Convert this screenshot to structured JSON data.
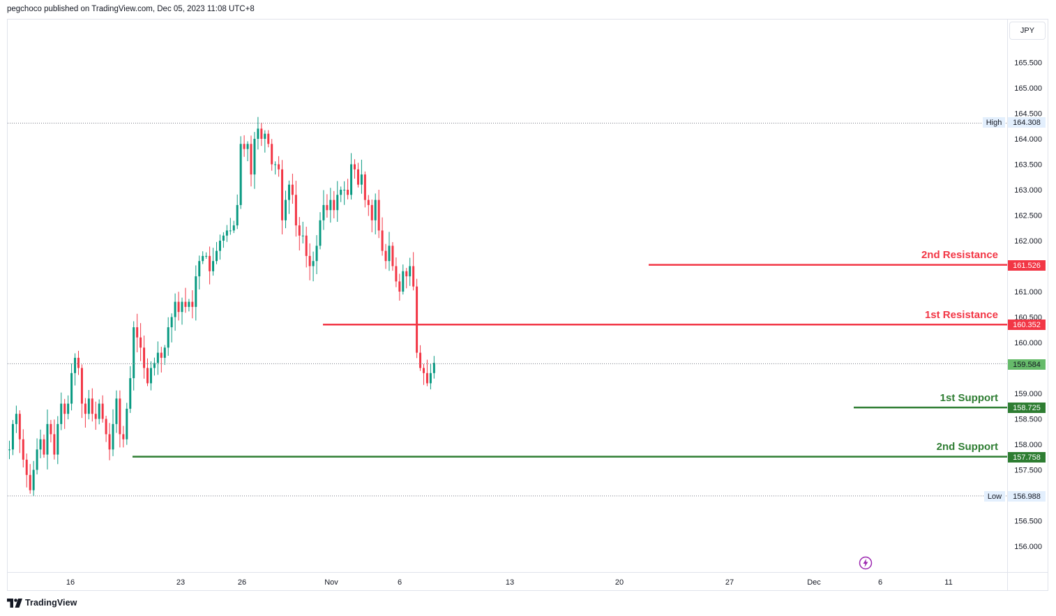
{
  "header": {
    "publisher_text": "pegchoco published on TradingView.com, Dec 05, 2023 11:08 UTC+8"
  },
  "currency_button": "JPY",
  "footer": {
    "brand": "TradingView"
  },
  "colors": {
    "up": "#26a69a",
    "down": "#ef5350",
    "up_body": "#2e9e4e",
    "resistance": "#f23645",
    "support": "#2e7d32",
    "current_price_bg": "#66bb6a",
    "axis_text": "#131722",
    "grid": "#e0e3eb"
  },
  "levels": {
    "res2": {
      "label": "2nd Resistance",
      "price": "161.526"
    },
    "res1": {
      "label": "1st Resistance",
      "price": "160.352"
    },
    "sup1": {
      "label": "1st Support",
      "price": "158.725"
    },
    "sup2": {
      "label": "2nd Support",
      "price": "157.758"
    }
  },
  "markers": {
    "high": {
      "label": "High",
      "price": "164.308"
    },
    "low": {
      "label": "Low",
      "price": "156.988"
    },
    "current": {
      "price": "159.584"
    }
  },
  "chart_data": {
    "type": "candlestick",
    "symbol_currency": "JPY",
    "y_axis": {
      "ticks": [
        "165.500",
        "165.000",
        "164.500",
        "164.000",
        "163.500",
        "163.000",
        "162.500",
        "162.000",
        "161.000",
        "160.500",
        "160.000",
        "159.000",
        "158.500",
        "158.000",
        "157.500",
        "156.500",
        "156.000"
      ],
      "ylim": [
        155.7,
        166.0
      ]
    },
    "x_axis": {
      "ticks": [
        "16",
        "23",
        "26",
        "Nov",
        "6",
        "13",
        "20",
        "27",
        "Dec",
        "6",
        "11"
      ]
    },
    "grid": false,
    "high": 164.308,
    "low": 156.988,
    "last_price": 159.584,
    "path": [
      {
        "d": "Oct 16",
        "p": 157.9
      },
      {
        "d": "Oct 16",
        "p": 158.4
      },
      {
        "d": "Oct 16",
        "p": 158.6
      },
      {
        "d": "Oct 17",
        "p": 158.1
      },
      {
        "d": "Oct 17",
        "p": 157.7
      },
      {
        "d": "Oct 18",
        "p": 157.4
      },
      {
        "d": "Oct 18",
        "p": 157.1
      },
      {
        "d": "Oct 19",
        "p": 157.5
      },
      {
        "d": "Oct 20",
        "p": 157.9
      },
      {
        "d": "Oct 20",
        "p": 158.1
      },
      {
        "d": "Oct 21",
        "p": 157.8
      },
      {
        "d": "Oct 22",
        "p": 158.4
      },
      {
        "d": "Oct 22",
        "p": 158.2
      },
      {
        "d": "Oct 23",
        "p": 157.8
      },
      {
        "d": "Oct 23",
        "p": 158.4
      },
      {
        "d": "Oct 23",
        "p": 158.8
      },
      {
        "d": "Oct 24",
        "p": 158.6
      },
      {
        "d": "Oct 24",
        "p": 158.8
      },
      {
        "d": "Oct 24",
        "p": 159.4
      },
      {
        "d": "Oct 25",
        "p": 159.7
      },
      {
        "d": "Oct 25",
        "p": 159.5
      },
      {
        "d": "Oct 26",
        "p": 158.8
      },
      {
        "d": "Oct 26",
        "p": 158.6
      },
      {
        "d": "Oct 27",
        "p": 158.9
      },
      {
        "d": "Oct 27",
        "p": 158.6
      },
      {
        "d": "Oct 28",
        "p": 158.5
      },
      {
        "d": "Oct 29",
        "p": 158.8
      },
      {
        "d": "Oct 30",
        "p": 158.5
      },
      {
        "d": "Oct 30",
        "p": 158.2
      },
      {
        "d": "Oct 31",
        "p": 157.9
      },
      {
        "d": "Oct 31",
        "p": 158.4
      },
      {
        "d": "Oct 31",
        "p": 158.9
      },
      {
        "d": "Oct 31",
        "p": 158.2
      },
      {
        "d": "Nov 01",
        "p": 158.1
      },
      {
        "d": "Nov 01",
        "p": 158.7
      },
      {
        "d": "Nov 01",
        "p": 159.3
      },
      {
        "d": "Nov 01",
        "p": 160.3
      },
      {
        "d": "Nov 02",
        "p": 160.1
      },
      {
        "d": "Nov 02",
        "p": 159.9
      },
      {
        "d": "Nov 02",
        "p": 159.5
      },
      {
        "d": "Nov 03",
        "p": 159.2
      },
      {
        "d": "Nov 03",
        "p": 159.5
      },
      {
        "d": "Nov 04",
        "p": 159.6
      },
      {
        "d": "Nov 04",
        "p": 159.8
      },
      {
        "d": "Nov 05",
        "p": 159.7
      },
      {
        "d": "Nov 06",
        "p": 159.9
      },
      {
        "d": "Nov 06",
        "p": 160.3
      },
      {
        "d": "Nov 06",
        "p": 160.5
      },
      {
        "d": "Nov 07",
        "p": 160.8
      },
      {
        "d": "Nov 08",
        "p": 160.6
      },
      {
        "d": "Nov 08",
        "p": 160.8
      },
      {
        "d": "Nov 09",
        "p": 160.7
      },
      {
        "d": "Nov 09",
        "p": 160.8
      },
      {
        "d": "Nov 10",
        "p": 160.7
      },
      {
        "d": "Nov 10",
        "p": 161.3
      },
      {
        "d": "Nov 11",
        "p": 161.6
      },
      {
        "d": "Nov 12",
        "p": 161.7
      },
      {
        "d": "Nov 12",
        "p": 161.7
      },
      {
        "d": "Nov 13",
        "p": 161.4
      },
      {
        "d": "Nov 13",
        "p": 161.6
      },
      {
        "d": "Nov 13",
        "p": 161.8
      },
      {
        "d": "Nov 14",
        "p": 162.0
      },
      {
        "d": "Nov 14",
        "p": 162.1
      },
      {
        "d": "Nov 14",
        "p": 162.2
      },
      {
        "d": "Nov 15",
        "p": 162.2
      },
      {
        "d": "Nov 15",
        "p": 162.3
      },
      {
        "d": "Nov 15",
        "p": 162.7
      },
      {
        "d": "Nov 16",
        "p": 163.9
      },
      {
        "d": "Nov 16",
        "p": 163.8
      },
      {
        "d": "Nov 16",
        "p": 163.9
      },
      {
        "d": "Nov 16",
        "p": 163.3
      },
      {
        "d": "Nov 17",
        "p": 164.0
      },
      {
        "d": "Nov 17",
        "p": 164.2
      },
      {
        "d": "Nov 17",
        "p": 164.0
      },
      {
        "d": "Nov 18",
        "p": 164.1
      },
      {
        "d": "Nov 18",
        "p": 163.9
      },
      {
        "d": "Nov 18",
        "p": 163.5
      },
      {
        "d": "Nov 19",
        "p": 163.5
      },
      {
        "d": "Nov 19",
        "p": 163.4
      },
      {
        "d": "Nov 20",
        "p": 162.4
      },
      {
        "d": "Nov 20",
        "p": 162.8
      },
      {
        "d": "Nov 20",
        "p": 163.1
      },
      {
        "d": "Nov 21",
        "p": 162.9
      },
      {
        "d": "Nov 21",
        "p": 162.3
      },
      {
        "d": "Nov 21",
        "p": 162.1
      },
      {
        "d": "Nov 22",
        "p": 162.1
      },
      {
        "d": "Nov 22",
        "p": 161.7
      },
      {
        "d": "Nov 22",
        "p": 161.5
      },
      {
        "d": "Nov 23",
        "p": 161.6
      },
      {
        "d": "Nov 23",
        "p": 161.9
      },
      {
        "d": "Nov 23",
        "p": 162.4
      },
      {
        "d": "Nov 24",
        "p": 162.7
      },
      {
        "d": "Nov 24",
        "p": 162.6
      },
      {
        "d": "Nov 24",
        "p": 162.8
      },
      {
        "d": "Nov 25",
        "p": 162.6
      },
      {
        "d": "Nov 25",
        "p": 162.9
      },
      {
        "d": "Nov 26",
        "p": 163.0
      },
      {
        "d": "Nov 26",
        "p": 163.0
      },
      {
        "d": "Nov 27",
        "p": 162.9
      },
      {
        "d": "Nov 27",
        "p": 163.5
      },
      {
        "d": "Nov 27",
        "p": 163.4
      },
      {
        "d": "Nov 28",
        "p": 163.1
      },
      {
        "d": "Nov 28",
        "p": 163.3
      },
      {
        "d": "Nov 28",
        "p": 162.8
      },
      {
        "d": "Nov 28",
        "p": 162.7
      },
      {
        "d": "Nov 29",
        "p": 162.4
      },
      {
        "d": "Nov 29",
        "p": 162.8
      },
      {
        "d": "Nov 29",
        "p": 162.2
      },
      {
        "d": "Nov 30",
        "p": 161.8
      },
      {
        "d": "Nov 30",
        "p": 161.6
      },
      {
        "d": "Nov 30",
        "p": 161.9
      },
      {
        "d": "Nov 30",
        "p": 161.5
      },
      {
        "d": "Dec 01",
        "p": 161.2
      },
      {
        "d": "Dec 01",
        "p": 161.0
      },
      {
        "d": "Dec 01",
        "p": 161.4
      },
      {
        "d": "Dec 01",
        "p": 161.3
      },
      {
        "d": "Dec 02",
        "p": 161.5
      },
      {
        "d": "Dec 02",
        "p": 161.1
      },
      {
        "d": "Dec 02",
        "p": 159.8
      },
      {
        "d": "Dec 03",
        "p": 159.5
      },
      {
        "d": "Dec 03",
        "p": 159.4
      },
      {
        "d": "Dec 04",
        "p": 159.2
      },
      {
        "d": "Dec 04",
        "p": 159.4
      },
      {
        "d": "Dec 05",
        "p": 159.6
      }
    ]
  }
}
